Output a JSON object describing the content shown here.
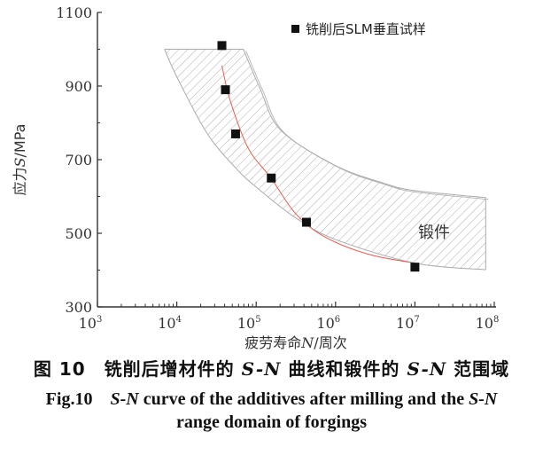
{
  "chart_data": {
    "type": "scatter",
    "title": "",
    "xlabel": "疲劳寿命N/周次",
    "xlabel_parts": [
      "疲劳寿命",
      "N",
      "/周次"
    ],
    "ylabel": "应力S/MPa",
    "ylabel_parts": [
      "应力",
      "S",
      "/MPa"
    ],
    "xscale": "log",
    "xlim": [
      1000,
      100000000
    ],
    "ylim": [
      300,
      1100
    ],
    "x_ticks": [
      {
        "base": "10",
        "exp": "3"
      },
      {
        "base": "10",
        "exp": "4"
      },
      {
        "base": "10",
        "exp": "5"
      },
      {
        "base": "10",
        "exp": "6"
      },
      {
        "base": "10",
        "exp": "7"
      },
      {
        "base": "10",
        "exp": "8"
      }
    ],
    "y_ticks": [
      "300",
      "500",
      "700",
      "900",
      "1100"
    ],
    "legend": {
      "position": "top-right",
      "label": "铣削后SLM垂直试样"
    },
    "series": [
      {
        "name": "铣削后SLM垂直试样",
        "marker": "square",
        "color": "#111111",
        "points": [
          [
            37000,
            1010
          ],
          [
            41000,
            890
          ],
          [
            55000,
            770
          ],
          [
            155000,
            650
          ],
          [
            430000,
            530
          ],
          [
            10000000,
            408
          ]
        ]
      }
    ],
    "fit_curve": {
      "color": "#e06050",
      "points": [
        [
          37000,
          955
        ],
        [
          47000,
          861
        ],
        [
          79000,
          732
        ],
        [
          155000,
          649
        ],
        [
          310000,
          555
        ],
        [
          720000,
          491
        ],
        [
          2600000,
          443
        ],
        [
          10000000,
          419
        ]
      ]
    },
    "forging_band": {
      "label": "锻件",
      "color": "#aaaaaa",
      "upper": [
        [
          69000,
          1000
        ],
        [
          112000,
          893
        ],
        [
          204000,
          780
        ],
        [
          1000000,
          684
        ],
        [
          4070000,
          636
        ],
        [
          10000000,
          616
        ],
        [
          78000000,
          597
        ]
      ],
      "lower": [
        [
          7000,
          1000
        ],
        [
          10000,
          925
        ],
        [
          24000,
          772
        ],
        [
          56000,
          676
        ],
        [
          102000,
          624
        ],
        [
          309000,
          543
        ],
        [
          1000000,
          483
        ],
        [
          10000000,
          419
        ],
        [
          78000000,
          401
        ]
      ]
    }
  },
  "caption": {
    "cn": [
      "图 10　铣削后增材件的 ",
      "S-N",
      " 曲线和锻件的 ",
      "S-N",
      " 范围域"
    ],
    "en_line1": [
      "Fig.10　",
      "S-N",
      " curve of the additives after milling and the ",
      "S-N"
    ],
    "en_line2": "range domain of forgings"
  }
}
